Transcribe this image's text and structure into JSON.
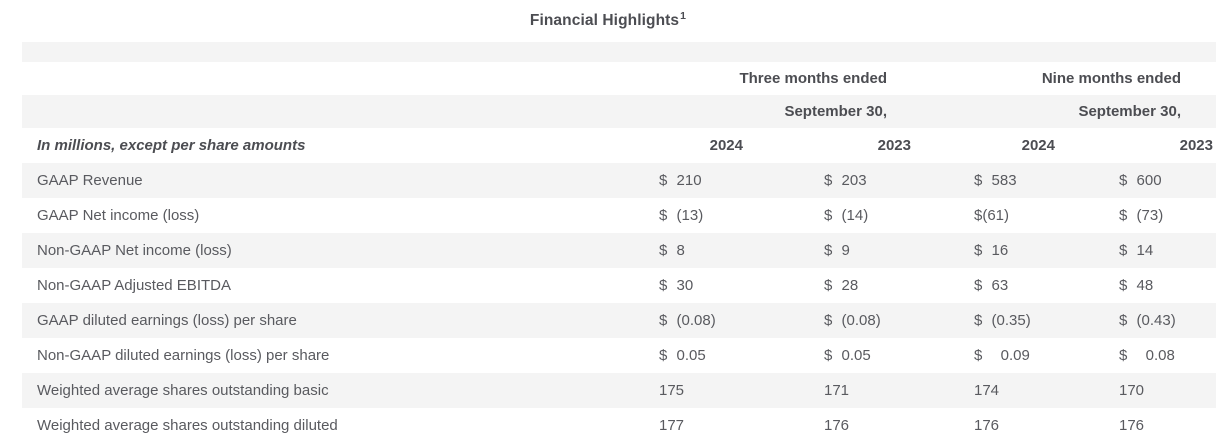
{
  "title": {
    "text": "Financial Highlights",
    "superscript": "1"
  },
  "table": {
    "group_headers": [
      "Three months ended",
      "Nine months ended"
    ],
    "subheaders": [
      "September 30,",
      "September 30,"
    ],
    "units_label": "In millions, except per share amounts",
    "year_headers": [
      "2024",
      "2023",
      "2024",
      "2023"
    ],
    "rows": [
      {
        "label": "GAAP Revenue",
        "values": [
          "$ 210",
          "$ 203",
          "$ 583",
          "$ 600"
        ]
      },
      {
        "label": "GAAP Net income (loss)",
        "values": [
          "$ (13)",
          "$ (14)",
          "$(61)",
          "$ (73)"
        ]
      },
      {
        "label": "Non-GAAP Net income (loss)",
        "values": [
          "$ 8",
          "$ 9",
          "$ 16",
          "$ 14"
        ]
      },
      {
        "label": "Non-GAAP Adjusted EBITDA",
        "values": [
          "$ 30",
          "$ 28",
          "$ 63",
          "$ 48"
        ]
      },
      {
        "label": "GAAP diluted earnings (loss) per share",
        "values": [
          "$ (0.08)",
          "$ (0.08)",
          "$ (0.35)",
          "$ (0.43)"
        ]
      },
      {
        "label": "Non-GAAP diluted earnings (loss) per share",
        "values": [
          "$ 0.05",
          "$ 0.05",
          "$  0.09",
          "$  0.08"
        ]
      },
      {
        "label": "Weighted average shares outstanding basic",
        "values": [
          "175",
          "171",
          "174",
          "170"
        ]
      },
      {
        "label": "Weighted average shares outstanding diluted",
        "values": [
          "177",
          "176",
          "176",
          "176"
        ]
      }
    ]
  },
  "colors": {
    "stripe": "#f4f4f4",
    "body_text": "#595a5f",
    "heading_text": "#4c4d52",
    "background": "#ffffff"
  }
}
